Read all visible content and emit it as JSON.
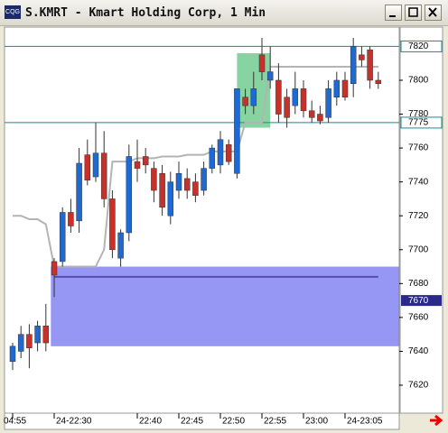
{
  "chart_data": {
    "type": "candlestick",
    "title": "S.KMRT - Kmart Holding Corp, 1 Min",
    "categories": [
      "04:55",
      null,
      null,
      null,
      null,
      "24-22:30",
      null,
      null,
      null,
      null,
      null,
      null,
      null,
      null,
      null,
      "22:40",
      null,
      null,
      null,
      null,
      "22:45",
      null,
      null,
      null,
      null,
      "22:50",
      null,
      null,
      null,
      null,
      "22:55",
      null,
      null,
      null,
      null,
      "23:00",
      null,
      null,
      null,
      null,
      "24-23:05",
      null,
      null,
      null,
      null
    ],
    "open": [
      7634,
      7640,
      7650,
      7645,
      7655,
      7693,
      7693,
      7722,
      7717,
      7756,
      7743,
      7757,
      7730,
      7695,
      7710,
      7752,
      7755,
      7748,
      7745,
      7720,
      7735,
      7742,
      7740,
      7735,
      7748,
      7750,
      7762,
      7745,
      7790,
      7785,
      7815,
      7800,
      7800,
      7790,
      7785,
      7795,
      7782,
      7780,
      7778,
      7790,
      7800,
      7798,
      7815,
      7818,
      7800
    ],
    "high": [
      7645,
      7655,
      7656,
      7658,
      7668,
      7695,
      7725,
      7730,
      7760,
      7765,
      7775,
      7770,
      7735,
      7712,
      7762,
      7765,
      7760,
      7752,
      7750,
      7746,
      7752,
      7748,
      7745,
      7752,
      7762,
      7770,
      7765,
      7795,
      7795,
      7805,
      7825,
      7820,
      7810,
      7795,
      7805,
      7800,
      7788,
      7785,
      7800,
      7805,
      7805,
      7825,
      7820,
      7820,
      7805
    ],
    "low": [
      7629,
      7636,
      7630,
      7640,
      7640,
      7672,
      7690,
      7710,
      7710,
      7738,
      7740,
      7725,
      7695,
      7690,
      7705,
      7740,
      7745,
      7728,
      7720,
      7715,
      7730,
      7730,
      7728,
      7732,
      7745,
      7745,
      7750,
      7742,
      7780,
      7780,
      7800,
      7795,
      7775,
      7772,
      7780,
      7778,
      7775,
      7774,
      7775,
      7785,
      7788,
      7790,
      7808,
      7795,
      7795
    ],
    "close": [
      7643,
      7650,
      7642,
      7655,
      7645,
      7685,
      7722,
      7714,
      7751,
      7741,
      7757,
      7730,
      7700,
      7710,
      7755,
      7748,
      7750,
      7735,
      7725,
      7740,
      7745,
      7735,
      7732,
      7748,
      7760,
      7765,
      7752,
      7795,
      7785,
      7795,
      7805,
      7805,
      7780,
      7778,
      7795,
      7782,
      7778,
      7776,
      7795,
      7800,
      7790,
      7820,
      7812,
      7800,
      7798
    ],
    "up_color": "#1e6ad2",
    "down_color": "#c8302a",
    "overlay": {
      "color": "#b4b4b4",
      "values": [
        7720,
        7720,
        7718,
        7718,
        7715,
        7690,
        7690,
        7690,
        7690,
        7690,
        7690,
        7700,
        7752,
        7752,
        7752,
        7754,
        7754,
        7754,
        7755,
        7755,
        7755,
        7756,
        7756,
        7756,
        7758,
        7758,
        7758,
        7758,
        7775,
        7775,
        7775,
        7808,
        7808,
        7808,
        7808,
        7808,
        7808,
        7808,
        7808,
        7808,
        7808,
        7808,
        7808,
        7808,
        7808
      ]
    },
    "ylim": [
      7603.5,
      7831.4
    ],
    "yticks": [
      7620,
      7640,
      7660,
      7680,
      7700,
      7720,
      7740,
      7760,
      7780,
      7800
    ],
    "levels": [
      {
        "value": 7820,
        "color": "#1c8a8a"
      },
      {
        "value": 7775,
        "color": "#1c8a8a"
      }
    ],
    "marker_level": 7670,
    "support_line": {
      "value": 7684,
      "from": 5,
      "to": 44,
      "color": "#5a4ab0"
    },
    "zones": [
      {
        "from": 7643,
        "to": 7690,
        "start": 4.6,
        "color": "#6a6af0"
      },
      {
        "from": 7772,
        "to": 7816,
        "start": 27,
        "end": 31,
        "color": "#55c07a"
      }
    ]
  }
}
